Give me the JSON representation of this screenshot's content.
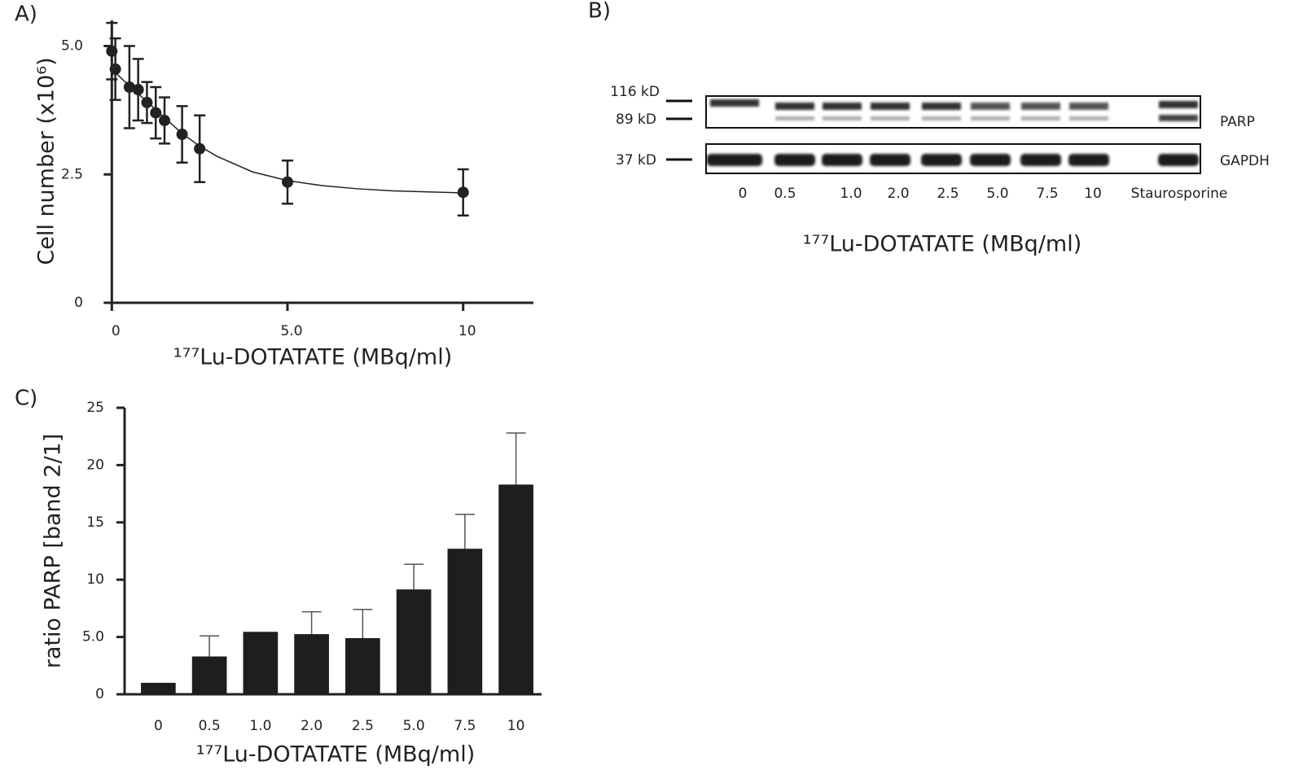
{
  "chart_data": [
    {
      "type": "scatter",
      "label": "A)",
      "y_label": "Cell number (x10⁶)",
      "x_label": "¹⁷⁷Lu-DOTATATE (MBq/ml)",
      "x": [
        0,
        0.1,
        0.5,
        0.75,
        1.0,
        1.25,
        1.5,
        2.0,
        2.5,
        5.0,
        10
      ],
      "values": [
        4.9,
        4.55,
        4.2,
        4.15,
        3.9,
        3.7,
        3.55,
        3.28,
        3.0,
        2.35,
        2.15
      ],
      "errors": [
        0.55,
        0.6,
        0.8,
        0.6,
        0.4,
        0.5,
        0.45,
        0.55,
        0.65,
        0.42,
        0.45
      ],
      "fit": {
        "x": [
          0,
          0.5,
          1,
          1.5,
          2,
          2.5,
          3,
          4,
          5,
          6,
          7,
          8,
          9,
          10
        ],
        "values": [
          4.55,
          4.22,
          3.92,
          3.6,
          3.3,
          3.05,
          2.85,
          2.55,
          2.38,
          2.28,
          2.22,
          2.18,
          2.16,
          2.14
        ]
      },
      "color": "#222222",
      "xlim": [
        -0.1,
        12
      ],
      "xticks": [
        0,
        {
          "value": 5,
          "label": "5.0"
        },
        10
      ],
      "ylim": [
        0,
        5.5
      ],
      "yticks": [
        0,
        {
          "value": 2.5,
          "label": "2.5"
        },
        {
          "value": 5,
          "label": "5.0"
        }
      ]
    },
    {
      "type": "bar",
      "label": "C)",
      "y_label": "ratio PARP [band 2/1]",
      "x_label": "¹⁷⁷Lu-DOTATATE (MBq/ml)",
      "categories": [
        "0",
        "0.5",
        "1.0",
        "2.0",
        "2.5",
        "5.0",
        "7.5",
        "10"
      ],
      "values": [
        1.0,
        3.3,
        5.45,
        5.25,
        4.9,
        9.15,
        12.7,
        18.3
      ],
      "errors": [
        null,
        1.8,
        null,
        1.95,
        2.5,
        2.2,
        3.0,
        4.5
      ],
      "color": "#1e1e1e",
      "ylim": [
        0,
        25
      ],
      "yticks": [
        0,
        {
          "value": 5,
          "label": "5.0"
        },
        10,
        15,
        20,
        25
      ]
    }
  ],
  "blot": {
    "label": "B)",
    "markers": [
      "116 kD",
      "89 kD",
      "37 kD"
    ],
    "proteins": [
      "PARP",
      "GAPDH"
    ],
    "lanes": [
      "0",
      "0.5",
      "1.0",
      "2.0",
      "2.5",
      "5.0",
      "7.5",
      "10",
      "Staurosporine"
    ],
    "x_label": "¹⁷⁷Lu-DOTATATE (MBq/ml)"
  }
}
